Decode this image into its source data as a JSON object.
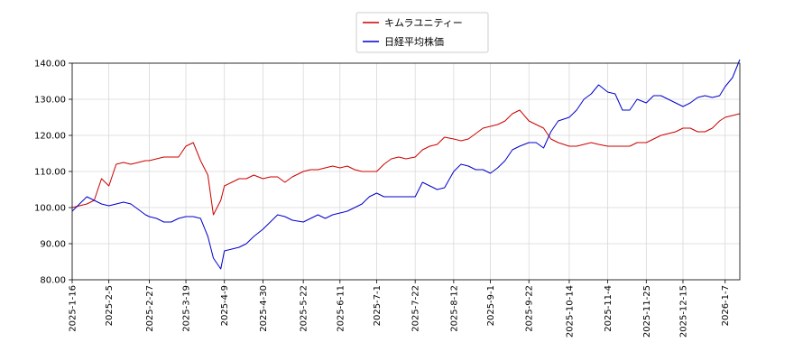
{
  "chart_data": {
    "type": "line",
    "title": "",
    "xlabel": "",
    "ylabel": "",
    "ylim": [
      80,
      140
    ],
    "grid": true,
    "legend_position": "top-center",
    "y_ticks": [
      80,
      90,
      100,
      110,
      120,
      130,
      140
    ],
    "y_tick_labels": [
      "80.00",
      "90.00",
      "100.00",
      "110.00",
      "120.00",
      "130.00",
      "140.00"
    ],
    "x_ticks": [
      "2025-1-16",
      "2025-2-5",
      "2025-2-27",
      "2025-3-19",
      "2025-4-9",
      "2025-4-30",
      "2025-5-22",
      "2025-6-11",
      "2025-7-1",
      "2025-7-22",
      "2025-8-12",
      "2025-9-1",
      "2025-9-22",
      "2025-10-14",
      "2025-11-4",
      "2025-11-25",
      "2025-12-15",
      "2026-1-7"
    ],
    "x": [
      "2025-1-16",
      "2025-1-20",
      "2025-1-24",
      "2025-1-28",
      "2025-2-1",
      "2025-2-5",
      "2025-2-9",
      "2025-2-13",
      "2025-2-17",
      "2025-2-21",
      "2025-2-25",
      "2025-2-27",
      "2025-3-3",
      "2025-3-7",
      "2025-3-11",
      "2025-3-15",
      "2025-3-19",
      "2025-3-23",
      "2025-3-27",
      "2025-3-31",
      "2025-4-3",
      "2025-4-7",
      "2025-4-9",
      "2025-4-13",
      "2025-4-17",
      "2025-4-21",
      "2025-4-25",
      "2025-4-30",
      "2025-5-4",
      "2025-5-8",
      "2025-5-12",
      "2025-5-16",
      "2025-5-22",
      "2025-5-26",
      "2025-5-30",
      "2025-6-3",
      "2025-6-7",
      "2025-6-11",
      "2025-6-15",
      "2025-6-19",
      "2025-6-23",
      "2025-6-27",
      "2025-7-1",
      "2025-7-5",
      "2025-7-9",
      "2025-7-13",
      "2025-7-17",
      "2025-7-22",
      "2025-7-26",
      "2025-7-30",
      "2025-8-3",
      "2025-8-7",
      "2025-8-12",
      "2025-8-16",
      "2025-8-20",
      "2025-8-24",
      "2025-8-28",
      "2025-9-1",
      "2025-9-5",
      "2025-9-9",
      "2025-9-13",
      "2025-9-17",
      "2025-9-22",
      "2025-9-26",
      "2025-9-30",
      "2025-10-4",
      "2025-10-8",
      "2025-10-14",
      "2025-10-18",
      "2025-10-22",
      "2025-10-26",
      "2025-10-30",
      "2025-11-4",
      "2025-11-8",
      "2025-11-12",
      "2025-11-16",
      "2025-11-20",
      "2025-11-25",
      "2025-11-29",
      "2025-12-3",
      "2025-12-7",
      "2025-12-11",
      "2025-12-15",
      "2025-12-19",
      "2025-12-23",
      "2025-12-27",
      "2025-12-31",
      "2026-1-4",
      "2026-1-7",
      "2026-1-11",
      "2026-1-15"
    ],
    "series": [
      {
        "name": "キムラユニティー",
        "color": "#cc0000",
        "values": [
          100,
          100.5,
          101,
          102,
          108,
          106,
          112,
          112.5,
          112,
          112.5,
          113,
          113,
          113.5,
          114,
          114,
          114,
          117,
          118,
          113,
          109,
          98,
          102,
          106,
          107,
          108,
          108,
          109,
          108,
          108.5,
          108.5,
          107,
          108.5,
          110,
          110.5,
          110.5,
          111,
          111.5,
          111,
          111.5,
          110.5,
          110,
          110,
          110,
          112,
          113.5,
          114,
          113.5,
          114,
          116,
          117,
          117.5,
          119.5,
          119,
          118.5,
          119,
          120.5,
          122,
          122.5,
          123,
          124,
          126,
          127,
          124,
          123,
          122,
          119,
          118,
          117,
          117,
          117.5,
          118,
          117.5,
          117,
          117,
          117,
          117,
          118,
          118,
          119,
          120,
          120.5,
          121,
          122,
          122,
          121,
          121,
          122,
          124,
          125,
          125.5,
          126
        ]
      },
      {
        "name": "日経平均株価",
        "color": "#0000cc",
        "values": [
          99,
          101,
          103,
          102,
          101,
          100.5,
          101,
          101.5,
          101,
          99.5,
          98,
          97.5,
          97,
          96,
          96,
          97,
          97.5,
          97.5,
          97,
          92,
          86,
          83,
          88,
          88.5,
          89,
          90,
          92,
          94,
          96,
          98,
          97.5,
          96.5,
          96,
          97,
          98,
          97,
          98,
          98.5,
          99,
          100,
          101,
          103,
          104,
          103,
          103,
          103,
          103,
          103,
          107,
          106,
          105,
          105.5,
          110,
          112,
          111.5,
          110.5,
          110.5,
          109.5,
          111,
          113,
          116,
          117,
          118,
          118,
          116.5,
          121,
          124,
          125,
          127,
          130,
          131.5,
          134,
          132,
          131.5,
          127,
          127,
          130,
          129,
          131,
          131,
          130,
          129,
          128,
          129,
          130.5,
          131,
          130.5,
          131,
          133.5,
          136,
          141
        ]
      }
    ]
  }
}
